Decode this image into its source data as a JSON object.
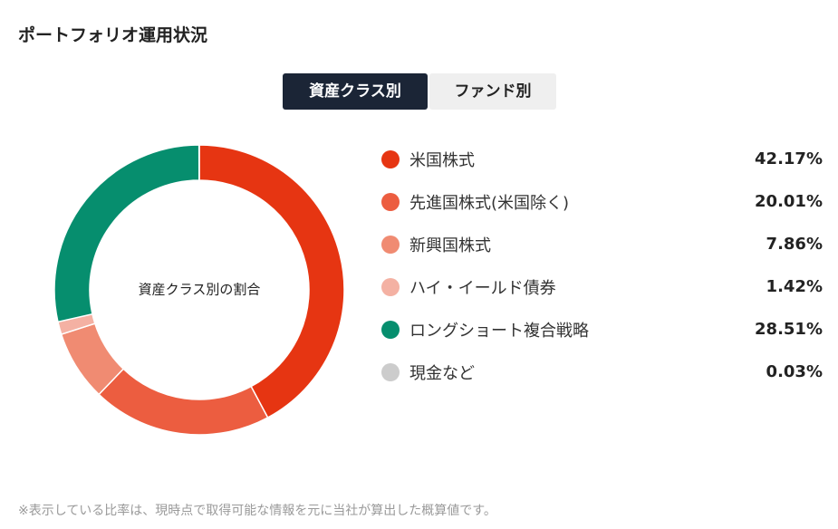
{
  "title": "ポートフォリオ運用状況",
  "tabs": [
    {
      "label": "資産クラス別",
      "active": true
    },
    {
      "label": "ファンド別",
      "active": false
    }
  ],
  "chart_data": {
    "type": "pie",
    "subtype": "donut",
    "center_label": "資産クラス別の割合",
    "unit": "%",
    "slices": [
      {
        "name": "米国株式",
        "value": 42.17,
        "label": "42.17%",
        "color": "#e63512"
      },
      {
        "name": "先進国株式(米国除く)",
        "value": 20.01,
        "label": "20.01%",
        "color": "#ec5d40"
      },
      {
        "name": "新興国株式",
        "value": 7.86,
        "label": "7.86%",
        "color": "#f08b72"
      },
      {
        "name": "ハイ・イールド債券",
        "value": 1.42,
        "label": "1.42%",
        "color": "#f4b1a3"
      },
      {
        "name": "ロングショート複合戦略",
        "value": 28.51,
        "label": "28.51%",
        "color": "#068e6e"
      },
      {
        "name": "現金など",
        "value": 0.03,
        "label": "0.03%",
        "color": "#cccccc"
      }
    ]
  },
  "footnote": "※表示している比率は、現時点で取得可能な情報を元に当社が算出した概算値です。"
}
